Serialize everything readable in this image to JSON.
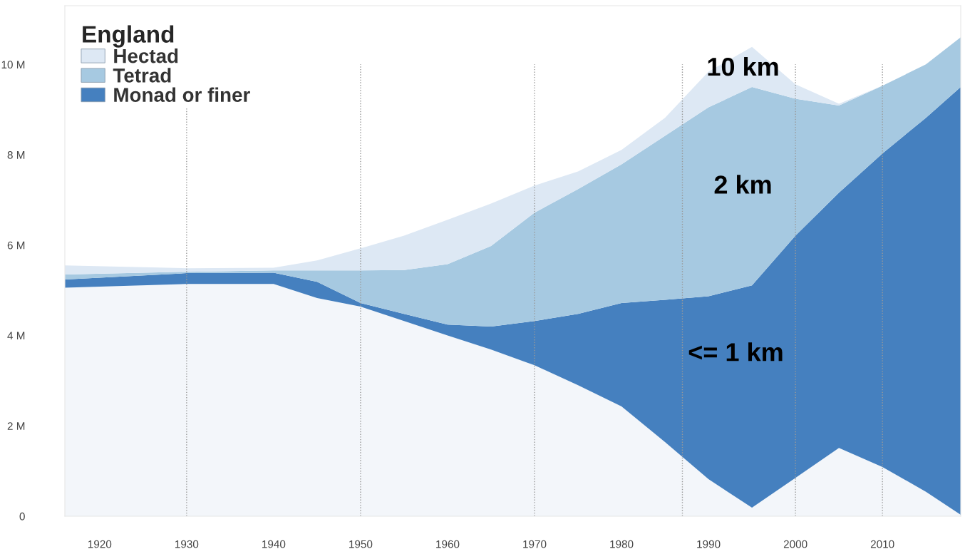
{
  "chart_data": {
    "type": "area",
    "stacked": true,
    "legend_title": "England",
    "legend": "top left",
    "x": [
      1916,
      1930,
      1940,
      1945,
      1950,
      1955,
      1960,
      1965,
      1970,
      1975,
      1980,
      1985,
      1990,
      1995,
      2000,
      2005,
      2010,
      2015,
      2019
    ],
    "series": [
      {
        "color": "#f3f6fa",
        "values": [
          5.06,
          5.14,
          5.14,
          4.83,
          4.64,
          4.32,
          4.0,
          3.69,
          3.34,
          2.9,
          2.43,
          1.64,
          0.82,
          0.19,
          0.85,
          1.51,
          1.09,
          0.54,
          0.03
        ]
      },
      {
        "name": "Monad or finer",
        "color": "#4580bf",
        "values": [
          0.18,
          0.24,
          0.25,
          0.36,
          0.08,
          0.16,
          0.24,
          0.51,
          0.98,
          1.58,
          2.29,
          3.15,
          4.05,
          4.92,
          5.36,
          5.65,
          6.94,
          8.28,
          9.47
        ]
      },
      {
        "name": "Tetrad",
        "color": "#a6c9e1",
        "values": [
          0.11,
          0.03,
          0.05,
          0.25,
          0.72,
          0.97,
          1.34,
          1.78,
          2.4,
          2.76,
          3.07,
          3.63,
          4.18,
          4.39,
          3.03,
          1.93,
          1.5,
          1.18,
          1.1
        ]
      },
      {
        "name": "Hectad",
        "color": "#dde8f4",
        "values": [
          0.2,
          0.08,
          0.06,
          0.22,
          0.49,
          0.76,
          0.98,
          0.94,
          0.6,
          0.39,
          0.32,
          0.4,
          0.79,
          0.89,
          0.32,
          0.04,
          0,
          0,
          0
        ]
      }
    ],
    "xlim": [
      1916,
      2019
    ],
    "xticks": [
      1920,
      1930,
      1940,
      1950,
      1960,
      1970,
      1980,
      1990,
      2000,
      2010
    ],
    "ylim": [
      0,
      11.3
    ],
    "yticks": [
      {
        "value": 0,
        "label": "0"
      },
      {
        "value": 2,
        "label": "2 M"
      },
      {
        "value": 4,
        "label": "4 M"
      },
      {
        "value": 6,
        "label": "6 M"
      },
      {
        "value": 8,
        "label": "8 M"
      },
      {
        "value": 10,
        "label": "10 M"
      }
    ],
    "ref_lines": [
      {
        "axis": "x",
        "value": 1930,
        "color": "#999999",
        "line_style": "dotted"
      },
      {
        "axis": "x",
        "value": 1950,
        "color": "#999999",
        "line_style": "dotted"
      },
      {
        "axis": "x",
        "value": 1970,
        "color": "#999999",
        "line_style": "dotted"
      },
      {
        "axis": "x",
        "value": 1987,
        "color": "#999999",
        "line_style": "dotted"
      },
      {
        "axis": "x",
        "value": 2000,
        "color": "#999999",
        "line_style": "dotted"
      },
      {
        "axis": "x",
        "value": 2010,
        "color": "#999999",
        "line_style": "dotted"
      }
    ],
    "annotations": [
      "10 km",
      "2 km",
      "<= 1 km"
    ]
  }
}
